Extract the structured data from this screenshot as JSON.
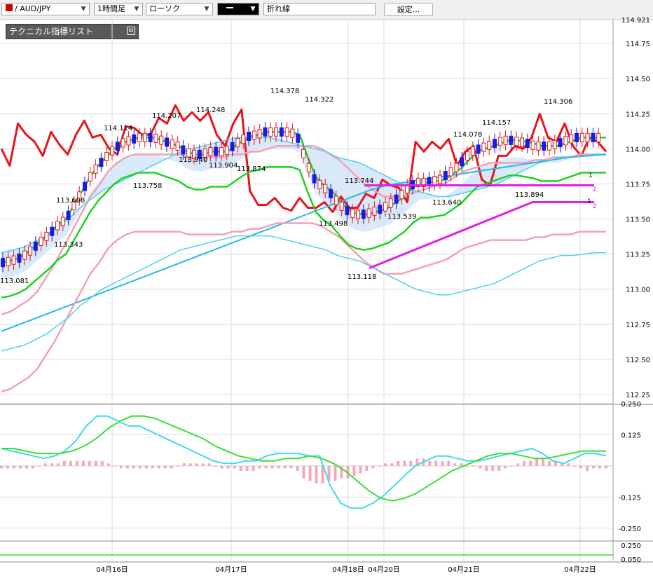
{
  "toolbar": {
    "symbol": "/ AUD/JPY",
    "timeframe": "1時間足",
    "chart_style": "ローソク",
    "line_type": "折れ線",
    "settings_label": "設定..."
  },
  "panel": {
    "title": "テクニカル指標リスト"
  },
  "colors": {
    "ma_red": "#e8141c",
    "bb_green": "#1ed21e",
    "bb_cyan": "#4fd0f0",
    "bb_pink": "#f4a0b4",
    "ma_blue": "#28b8e8",
    "cloud": "#cfe4f8",
    "trendline": "#e020e0",
    "candle_up": "#e8141c",
    "candle_down": "#1a1ae8",
    "macd_bar": "#f4a8b8",
    "signal": "#38e038",
    "macd": "#40d8f0"
  },
  "chart_data": {
    "type": "line",
    "title": "",
    "price_axis": {
      "ylim": [
        112.25,
        114.92
      ],
      "ticks": [
        "114.921",
        "114.75",
        "114.50",
        "114.25",
        "114.00",
        "113.75",
        "113.50",
        "113.25",
        "113.00",
        "112.75",
        "112.50",
        "112.25"
      ]
    },
    "x_labels": [
      "04月16日",
      "04月17日",
      "04月18日",
      "04月20日",
      "04月21日",
      "04月22日"
    ],
    "price_annotations": [
      "113.081",
      "113.608",
      "113.343",
      "114.114",
      "113.758",
      "114.207",
      "113.940",
      "114.248",
      "113.904",
      "113.874",
      "114.378",
      "114.322",
      "113.498",
      "113.744",
      "113.118",
      "113.539",
      "113.640",
      "114.078",
      "114.157",
      "113.894",
      "114.306"
    ],
    "trendline_tags": [
      "2",
      "2",
      "1",
      "1"
    ],
    "series": [
      {
        "values": [
          114.0,
          113.88,
          114.18,
          114.1,
          114.05,
          113.95,
          114.12,
          114.03,
          113.96,
          114.1,
          114.2,
          114.08,
          114.1,
          114.0,
          113.96,
          114.16,
          114.15,
          114.1,
          114.1,
          114.22,
          114.18,
          114.31,
          114.2,
          114.26,
          114.2,
          114.26,
          114.1,
          114.02,
          114.18,
          114.28,
          113.7,
          113.6,
          113.6,
          113.65,
          113.58,
          113.56,
          113.65,
          113.58,
          113.58,
          113.62,
          113.55,
          113.66,
          113.58,
          113.58,
          113.68,
          113.65,
          113.78,
          113.74,
          113.72,
          113.62,
          114.05,
          113.98,
          114.05,
          114.0,
          114.07,
          113.88,
          113.98,
          114.02,
          113.78,
          113.74,
          113.95,
          113.95,
          114.02,
          114.0,
          114.08,
          114.25,
          114.08,
          114.05,
          114.18,
          114.02,
          113.95,
          114.08,
          114.05,
          113.98
        ]
      },
      {
        "values": [
          113.19,
          113.2,
          113.22,
          113.25,
          113.3,
          113.35,
          113.4,
          113.46,
          113.5,
          113.6,
          113.7,
          113.8,
          113.88,
          113.94,
          114.0,
          114.04,
          114.06,
          114.08,
          114.08,
          114.08,
          114.06,
          114.04,
          114.02,
          113.98,
          113.96,
          113.96,
          113.98,
          113.98,
          113.98,
          114.02,
          114.06,
          114.09,
          114.1,
          114.12,
          114.12,
          114.12,
          114.12,
          114.1,
          113.94,
          113.8,
          113.74,
          113.7,
          113.63,
          113.57,
          113.54,
          113.53,
          113.54,
          113.56,
          113.58,
          113.62,
          113.66,
          113.72,
          113.76,
          113.76,
          113.77,
          113.78,
          113.82,
          113.86,
          113.92,
          113.98,
          114.0,
          114.02,
          114.04,
          114.06,
          114.06,
          114.05,
          114.04,
          114.02,
          114.02,
          114.02,
          114.04,
          114.06,
          114.08,
          114.08,
          114.08,
          114.08
        ]
      },
      {
        "values": [
          112.82,
          112.84,
          112.88,
          112.92,
          112.98,
          113.08,
          113.18,
          113.3,
          113.42,
          113.54,
          113.66,
          113.74,
          113.84,
          113.9,
          113.94,
          113.96,
          113.96,
          113.96,
          113.96,
          113.96,
          113.96,
          113.94,
          113.94,
          113.94,
          113.94,
          113.94,
          113.96,
          113.96,
          113.98,
          113.98,
          114.0,
          114.02,
          114.02,
          114.02,
          114.02,
          114.02,
          114.0,
          113.96,
          113.92,
          113.86,
          113.8,
          113.74,
          113.7,
          113.66,
          113.66,
          113.66,
          113.68,
          113.7,
          113.72,
          113.74,
          113.76,
          113.8,
          113.84,
          113.86,
          113.88,
          113.9,
          113.9,
          113.9,
          113.9,
          113.9,
          113.92,
          113.92,
          113.94,
          113.94,
          113.94,
          113.96,
          113.96,
          113.96,
          113.96
        ]
      },
      {
        "values": [
          113.26,
          113.28,
          113.3,
          113.34,
          113.38,
          113.44,
          113.5,
          113.58,
          113.64,
          113.7,
          113.74,
          113.78,
          113.82,
          113.86,
          113.9,
          113.94,
          113.98,
          114.0,
          114.02,
          114.04,
          114.06,
          114.08,
          114.08,
          114.08,
          114.08,
          114.06,
          114.04,
          114.02,
          114.0,
          113.98,
          113.94,
          113.92,
          113.9,
          113.86,
          113.82,
          113.78,
          113.74,
          113.7,
          113.68,
          113.66,
          113.66,
          113.68,
          113.7,
          113.72,
          113.74,
          113.78,
          113.82,
          113.86,
          113.9,
          113.92,
          113.94,
          113.94,
          113.95,
          113.96,
          113.96
        ]
      },
      {
        "values": [
          112.7,
          112.75,
          112.8,
          112.85,
          112.9,
          112.95,
          113.0,
          113.05,
          113.1,
          113.15,
          113.2,
          113.25,
          113.3,
          113.35,
          113.4,
          113.45,
          113.5,
          113.55,
          113.6,
          113.65,
          113.7,
          113.74,
          113.76,
          113.78,
          113.8,
          113.82,
          113.84,
          113.86,
          113.88,
          113.9,
          113.92,
          113.94,
          113.95,
          113.96
        ]
      }
    ],
    "trendlines": [
      {
        "from": [
          113.74,
          113.74
        ],
        "to": [
          113.74,
          113.74
        ]
      },
      {
        "from": [
          113.15,
          113.62
        ],
        "to": [
          113.62,
          113.62
        ]
      }
    ],
    "indicator_axis": {
      "ylim": [
        -0.29,
        0.25
      ],
      "ticks": [
        "0.250",
        "0.125",
        "-0.125",
        "-0.250"
      ]
    },
    "sub_axis": {
      "ticks": [
        "0.250",
        "0.050"
      ]
    },
    "indicator": {
      "macd": [
        0.07,
        0.06,
        0.05,
        0.04,
        0.03,
        0.04,
        0.06,
        0.1,
        0.16,
        0.2,
        0.2,
        0.18,
        0.16,
        0.16,
        0.14,
        0.12,
        0.1,
        0.08,
        0.06,
        0.04,
        0.02,
        0.01,
        0.01,
        0.02,
        0.02,
        0.04,
        0.05,
        0.05,
        0.05,
        0.04,
        0.04,
        -0.08,
        -0.15,
        -0.17,
        -0.17,
        -0.15,
        -0.12,
        -0.08,
        -0.04,
        0.0,
        0.02,
        0.04,
        0.04,
        0.03,
        0.02,
        0.02,
        0.03,
        0.04,
        0.05,
        0.06,
        0.07,
        0.05,
        0.02,
        0.01,
        0.03,
        0.05,
        0.05,
        0.04
      ],
      "signal": [
        0.07,
        0.07,
        0.06,
        0.05,
        0.05,
        0.05,
        0.06,
        0.08,
        0.11,
        0.15,
        0.18,
        0.2,
        0.2,
        0.19,
        0.17,
        0.15,
        0.13,
        0.11,
        0.08,
        0.06,
        0.04,
        0.03,
        0.02,
        0.02,
        0.03,
        0.03,
        0.04,
        0.03,
        0.01,
        -0.02,
        -0.06,
        -0.1,
        -0.13,
        -0.14,
        -0.13,
        -0.11,
        -0.08,
        -0.05,
        -0.02,
        0.0,
        0.02,
        0.04,
        0.05,
        0.05,
        0.04,
        0.03,
        0.03,
        0.04,
        0.05,
        0.06,
        0.06,
        0.06
      ],
      "histogram": [
        -0.01,
        -0.01,
        -0.01,
        -0.01,
        -0.01,
        -0.01,
        0.0,
        0.01,
        0.01,
        0.01,
        0.02,
        0.02,
        0.02,
        0.02,
        0.02,
        0.02,
        0.02,
        0.01,
        0.0,
        -0.01,
        -0.01,
        -0.01,
        -0.01,
        -0.01,
        -0.01,
        -0.01,
        -0.01,
        -0.01,
        0.0,
        0.01,
        0.01,
        0.01,
        0.01,
        0.01,
        0.0,
        -0.01,
        -0.01,
        -0.01,
        -0.02,
        -0.02,
        -0.02,
        -0.01,
        -0.01,
        -0.01,
        -0.01,
        -0.01,
        -0.01,
        -0.02,
        -0.05,
        -0.06,
        -0.07,
        -0.07,
        -0.06,
        -0.06,
        -0.05,
        -0.05,
        -0.04,
        -0.03,
        -0.02,
        -0.01,
        0.0,
        0.01,
        0.01,
        0.02,
        0.02,
        0.02,
        0.03,
        0.03,
        0.02,
        0.02,
        0.02,
        0.02,
        0.01,
        0.01,
        0.0,
        0.0,
        -0.01,
        -0.02,
        -0.02,
        -0.02,
        -0.01,
        0.0,
        0.01,
        0.02,
        0.02,
        0.03,
        0.03,
        0.02,
        0.02,
        0.01,
        0.01,
        0.0,
        -0.01,
        -0.02,
        -0.01,
        -0.01,
        -0.01
      ]
    }
  }
}
